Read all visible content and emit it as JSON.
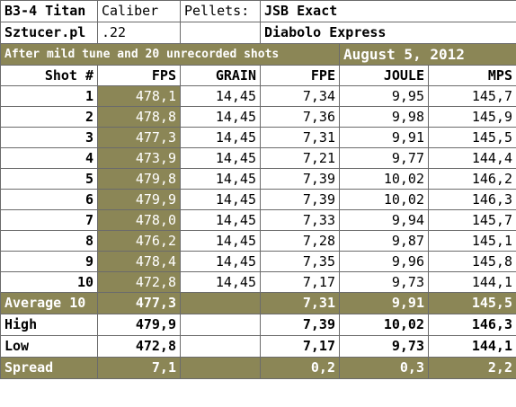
{
  "header": {
    "rifle": "B3-4 Titan",
    "caliber_label": "Caliber",
    "pellets_label": "Pellets:",
    "pellet_brand": "JSB Exact",
    "shop": "Sztucer.pl",
    "caliber_value": ".22",
    "pellet_model": "Diabolo Express",
    "note": "After mild tune and 20 unrecorded shots",
    "date": "August 5, 2012"
  },
  "columns": [
    "Shot #",
    "FPS",
    "GRAIN",
    "FPE",
    "JOULE",
    "MPS"
  ],
  "shots": [
    [
      "1",
      "478,1",
      "14,45",
      "7,34",
      "9,95",
      "145,7"
    ],
    [
      "2",
      "478,8",
      "14,45",
      "7,36",
      "9,98",
      "145,9"
    ],
    [
      "3",
      "477,3",
      "14,45",
      "7,31",
      "9,91",
      "145,5"
    ],
    [
      "4",
      "473,9",
      "14,45",
      "7,21",
      "9,77",
      "144,4"
    ],
    [
      "5",
      "479,8",
      "14,45",
      "7,39",
      "10,02",
      "146,2"
    ],
    [
      "6",
      "479,9",
      "14,45",
      "7,39",
      "10,02",
      "146,3"
    ],
    [
      "7",
      "478,0",
      "14,45",
      "7,33",
      "9,94",
      "145,7"
    ],
    [
      "8",
      "476,2",
      "14,45",
      "7,28",
      "9,87",
      "145,1"
    ],
    [
      "9",
      "478,4",
      "14,45",
      "7,35",
      "9,96",
      "145,8"
    ],
    [
      "10",
      "472,8",
      "14,45",
      "7,17",
      "9,73",
      "144,1"
    ]
  ],
  "summary": {
    "average": {
      "label": "Average 10",
      "fps": "477,3",
      "grain": "",
      "fpe": "7,31",
      "joule": "9,91",
      "mps": "145,5"
    },
    "high": {
      "label": "High",
      "fps": "479,9",
      "grain": "",
      "fpe": "7,39",
      "joule": "10,02",
      "mps": "146,3"
    },
    "low": {
      "label": "Low",
      "fps": "472,8",
      "grain": "",
      "fpe": "7,17",
      "joule": "9,73",
      "mps": "144,1"
    },
    "spread": {
      "label": "Spread",
      "fps": "7,1",
      "grain": "",
      "fpe": "0,2",
      "joule": "0,3",
      "mps": "2,2"
    }
  },
  "colors": {
    "olive": "#8b8656",
    "grid": "#6b6b6b"
  }
}
